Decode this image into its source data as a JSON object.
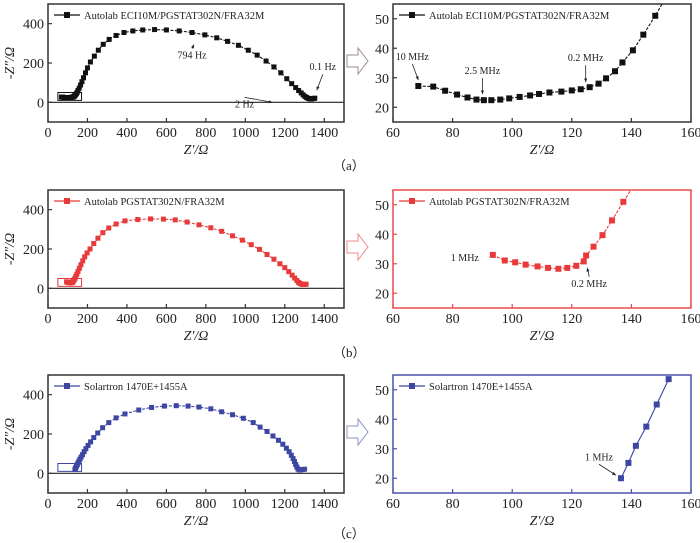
{
  "chart_data": [
    {
      "id": "a-full",
      "type": "line",
      "panel": "a",
      "view": "full",
      "color": "#111111",
      "legend": "Autolab ECI10M/PGSTAT302N/FRA32M",
      "legend_position": "top-left",
      "xlabel": "Z′/Ω",
      "ylabel": "-Z″/Ω",
      "xlim": [
        0,
        1500
      ],
      "ylim": [
        -100,
        500
      ],
      "xticks": [
        0,
        200,
        400,
        600,
        800,
        1000,
        1200,
        1400
      ],
      "yticks": [
        0,
        200,
        400
      ],
      "zero_line": true,
      "zoom_box": {
        "x": [
          50,
          170
        ],
        "y": [
          10,
          50
        ]
      },
      "series": [
        {
          "name": "Autolab ECI10M/PGSTAT302N/FRA32M",
          "x": [
            68,
            74,
            78,
            81,
            85,
            88,
            91,
            93,
            96,
            99,
            102,
            106,
            109,
            113,
            116,
            120,
            123,
            126,
            129,
            131,
            134,
            137,
            140,
            144,
            148,
            152,
            158,
            165,
            172,
            180,
            190,
            200,
            215,
            235,
            255,
            280,
            310,
            345,
            385,
            430,
            480,
            540,
            600,
            665,
            730,
            795,
            855,
            910,
            965,
            1015,
            1060,
            1105,
            1145,
            1180,
            1210,
            1235,
            1255,
            1270,
            1283,
            1293,
            1302,
            1310,
            1317,
            1323,
            1328,
            1333,
            1337,
            1342,
            1347,
            1352
          ],
          "y": [
            27,
            27,
            25.5,
            24,
            23,
            22.5,
            22.3,
            22.4,
            22.6,
            23,
            23.5,
            24,
            24.5,
            25,
            25.3,
            25.8,
            26.2,
            27,
            28,
            29.5,
            32,
            35,
            39,
            44.5,
            51,
            60,
            72,
            88,
            105,
            125,
            150,
            175,
            205,
            235,
            265,
            295,
            320,
            340,
            355,
            363,
            368,
            370,
            368,
            363,
            355,
            343,
            328,
            310,
            290,
            265,
            240,
            210,
            180,
            150,
            120,
            95,
            75,
            60,
            48,
            38,
            30,
            25,
            21,
            19,
            18,
            18,
            18.5,
            19,
            20,
            21
          ]
        }
      ],
      "annotations": [
        {
          "text": "794 Hz",
          "x": 730,
          "y": 355
        },
        {
          "text": "0.1 Hz",
          "x": 1352,
          "y": 21
        },
        {
          "text": "2 Hz",
          "x": 1300,
          "y": 0
        }
      ]
    },
    {
      "id": "a-zoom",
      "type": "line",
      "panel": "a",
      "view": "zoom",
      "color": "#111111",
      "legend": "Autolab ECI10M/PGSTAT302N/FRA32M",
      "legend_position": "top-left",
      "xlabel": "Z′/Ω",
      "ylabel": "",
      "xlim": [
        60,
        160
      ],
      "ylim": [
        15,
        55
      ],
      "xticks": [
        60,
        80,
        100,
        120,
        140,
        160
      ],
      "yticks": [
        20,
        30,
        40,
        50
      ],
      "series": [
        {
          "name": "Autolab ECI10M/PGSTAT302N/FRA32M",
          "x": [
            68.5,
            73.5,
            77.5,
            81.5,
            85,
            88,
            90.5,
            93,
            96,
            99,
            102.5,
            106,
            109,
            112.5,
            116.5,
            120,
            123,
            126,
            129,
            131.5,
            134.5,
            137,
            140.5,
            144,
            148,
            152
          ],
          "y": [
            27.2,
            27,
            25.6,
            24.3,
            23.3,
            22.6,
            22.4,
            22.4,
            22.6,
            23,
            23.5,
            24,
            24.5,
            25,
            25.3,
            25.7,
            26.1,
            26.8,
            28,
            29.8,
            32.2,
            35.2,
            39.3,
            44.6,
            51,
            58
          ]
        }
      ],
      "annotations": [
        {
          "text": "10 MHz",
          "x": 68.5,
          "y": 27.2
        },
        {
          "text": "2.5 MHz",
          "x": 90,
          "y": 22.4
        },
        {
          "text": "0.2 MHz",
          "x": 126,
          "y": 26.8
        }
      ]
    },
    {
      "id": "b-full",
      "type": "line",
      "panel": "b",
      "view": "full",
      "color": "#e83a3a",
      "legend": "Autolab PGSTAT302N/FRA32M",
      "legend_position": "top-left",
      "xlabel": "Z′/Ω",
      "ylabel": "-Z″/Ω",
      "xlim": [
        0,
        1500
      ],
      "ylim": [
        -100,
        500
      ],
      "xticks": [
        0,
        200,
        400,
        600,
        800,
        1000,
        1200,
        1400
      ],
      "yticks": [
        0,
        200,
        400
      ],
      "zero_line": true,
      "zoom_box": {
        "x": [
          50,
          170
        ],
        "y": [
          10,
          50
        ]
      },
      "series": [
        {
          "name": "Autolab PGSTAT302N/FRA32M",
          "x": [
            94,
            98,
            101,
            105,
            108,
            112,
            115,
            118,
            121,
            124,
            125,
            127,
            130,
            133,
            137,
            141,
            146,
            152,
            159,
            167,
            176,
            186,
            198,
            213,
            232,
            253,
            278,
            308,
            345,
            390,
            455,
            520,
            585,
            645,
            705,
            765,
            825,
            880,
            935,
            985,
            1030,
            1072,
            1110,
            1145,
            1175,
            1200,
            1220,
            1237,
            1250,
            1261,
            1270,
            1277,
            1284,
            1290,
            1296,
            1302,
            1308
          ],
          "y": [
            33,
            31,
            30.5,
            29.8,
            29,
            28.5,
            28.3,
            28.6,
            29.3,
            30.8,
            32.8,
            35.8,
            39.7,
            44.7,
            51,
            60,
            72,
            86,
            102,
            120,
            140,
            160,
            180,
            200,
            228,
            255,
            283,
            307,
            327,
            343,
            350,
            353,
            352,
            348,
            337,
            323,
            308,
            290,
            267,
            245,
            222,
            198,
            172,
            148,
            125,
            105,
            85,
            67,
            52,
            40,
            30,
            25,
            22,
            20,
            20,
            20.5,
            21
          ]
        }
      ],
      "annotations": []
    },
    {
      "id": "b-zoom",
      "type": "line",
      "panel": "b",
      "view": "zoom",
      "color": "#e83a3a",
      "legend": "Autolab PGSTAT302N/FRA32M",
      "legend_position": "top-left",
      "xlabel": "Z′/Ω",
      "ylabel": "",
      "xlim": [
        60,
        160
      ],
      "ylim": [
        15,
        55
      ],
      "xticks": [
        60,
        80,
        100,
        120,
        140,
        160
      ],
      "yticks": [
        20,
        30,
        40,
        50
      ],
      "series": [
        {
          "name": "Autolab PGSTAT302N/FRA32M",
          "x": [
            93.5,
            97.5,
            101,
            104.5,
            108.5,
            112,
            115.5,
            118.5,
            121.5,
            124,
            124.8,
            127.3,
            130.3,
            133.5,
            137.3,
            141
          ],
          "y": [
            33,
            31.1,
            30.5,
            29.7,
            29.1,
            28.6,
            28.3,
            28.6,
            29.3,
            30.8,
            32.8,
            35.8,
            39.7,
            44.7,
            51,
            57
          ]
        }
      ],
      "annotations": [
        {
          "text": "1 MHz",
          "x": 93.5,
          "y": 33
        },
        {
          "text": "0.2 MHz",
          "x": 124.5,
          "y": 30
        }
      ]
    },
    {
      "id": "c-full",
      "type": "line",
      "panel": "c",
      "view": "full",
      "color": "#3d46a3",
      "legend": "Solartron 1470E+1455A",
      "legend_position": "top-left",
      "xlabel": "Z′/Ω",
      "ylabel": "-Z″/Ω",
      "xlim": [
        0,
        1500
      ],
      "ylim": [
        -100,
        500
      ],
      "xticks": [
        0,
        200,
        400,
        600,
        800,
        1000,
        1200,
        1400
      ],
      "yticks": [
        0,
        200,
        400
      ],
      "zero_line": true,
      "zoom_box": {
        "x": [
          50,
          170
        ],
        "y": [
          10,
          50
        ]
      },
      "series": [
        {
          "name": "Solartron 1470E+1455A",
          "x": [
            136.5,
            139,
            141.5,
            145,
            148.5,
            152.5,
            157,
            162,
            168,
            175,
            183,
            192,
            203,
            216,
            232,
            252,
            277,
            308,
            345,
            390,
            460,
            525,
            590,
            650,
            710,
            765,
            825,
            880,
            935,
            990,
            1040,
            1075,
            1110,
            1140,
            1168,
            1190,
            1208,
            1222,
            1233,
            1242,
            1249,
            1255,
            1261,
            1267,
            1273,
            1280,
            1290,
            1300
          ],
          "y": [
            20,
            25,
            31,
            37.5,
            45,
            53.5,
            62,
            72,
            83,
            95,
            110,
            125,
            142,
            160,
            182,
            205,
            232,
            258,
            282,
            302,
            322,
            335,
            342,
            344,
            342,
            337,
            328,
            313,
            298,
            280,
            258,
            235,
            213,
            190,
            168,
            148,
            128,
            110,
            92,
            75,
            60,
            45,
            32,
            22,
            18,
            18,
            19,
            21
          ]
        }
      ],
      "annotations": []
    },
    {
      "id": "c-zoom",
      "type": "line",
      "panel": "c",
      "view": "zoom",
      "color": "#3d46a3",
      "legend": "Solartron 1470E+1455A",
      "legend_position": "top-left",
      "xlabel": "Z′/Ω",
      "ylabel": "",
      "xlim": [
        60,
        160
      ],
      "ylim": [
        15,
        55
      ],
      "xticks": [
        60,
        80,
        100,
        120,
        140,
        160
      ],
      "yticks": [
        20,
        30,
        40,
        50
      ],
      "series": [
        {
          "name": "Solartron 1470E+1455A",
          "x": [
            136.5,
            139,
            141.5,
            145,
            148.5,
            152.5
          ],
          "y": [
            20,
            25.2,
            31,
            37.5,
            45,
            53.6
          ]
        }
      ],
      "annotations": [
        {
          "text": "1 MHz",
          "x": 136.5,
          "y": 20
        }
      ]
    }
  ],
  "captions": {
    "a": "（a）",
    "b": "（b）",
    "c": "（c）"
  },
  "colors": {
    "frame_a": "#333333",
    "frame_b": "#e84a4a",
    "frame_c": "#4a52a8",
    "arrow_a": "#9a8f8a",
    "arrow_b": "#f08a8a",
    "arrow_c": "#8a90c8"
  }
}
